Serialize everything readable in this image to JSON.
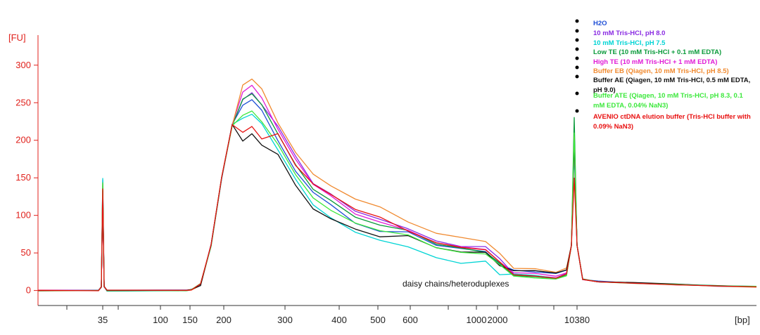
{
  "chart_data": {
    "type": "line",
    "ylabel": "[FU]",
    "xlabel": "[bp]",
    "y_ticks": [
      0,
      50,
      100,
      150,
      200,
      250,
      300
    ],
    "x_ticks": [
      "35",
      "100",
      "150",
      "200",
      "300",
      "400",
      "500",
      "600",
      "1000",
      "2000",
      "10380"
    ],
    "ylim": [
      -20,
      340
    ],
    "grid": false,
    "legend_position": "top-right",
    "annotation": "daisy chains/heteroduplexes",
    "series": [
      {
        "name": "H2O",
        "color": "#1f4fd6",
        "values": [
          [
            0,
            0
          ],
          [
            1,
            0
          ],
          [
            2,
            0
          ],
          [
            3,
            0
          ],
          [
            4,
            0
          ],
          [
            5,
            20
          ],
          [
            6,
            255
          ],
          [
            7,
            160
          ],
          [
            8,
            115
          ],
          [
            9,
            80
          ],
          [
            10,
            55
          ],
          [
            11,
            42
          ],
          [
            12,
            25
          ],
          [
            13,
            200
          ],
          [
            14,
            8
          ]
        ]
      },
      {
        "name": "10 mM Tris-HCl, pH 8.0",
        "color": "#8a2be2",
        "values": [
          [
            0,
            0
          ],
          [
            1,
            0
          ],
          [
            2,
            0
          ],
          [
            3,
            0
          ],
          [
            4,
            0
          ],
          [
            5,
            15
          ],
          [
            6,
            263
          ],
          [
            7,
            178
          ],
          [
            8,
            128
          ],
          [
            9,
            96
          ],
          [
            10,
            60
          ],
          [
            11,
            48
          ],
          [
            12,
            20
          ],
          [
            13,
            195
          ],
          [
            14,
            8
          ]
        ]
      },
      {
        "name": "10 mM Tris-HCl, pH 7.5",
        "color": "#00d4d4",
        "values": [
          [
            0,
            0
          ],
          [
            1,
            0
          ],
          [
            2,
            0
          ],
          [
            3,
            0
          ],
          [
            4,
            0
          ],
          [
            5,
            12
          ],
          [
            6,
            236
          ],
          [
            7,
            148
          ],
          [
            8,
            98
          ],
          [
            9,
            68
          ],
          [
            10,
            37
          ],
          [
            11,
            28
          ],
          [
            12,
            20
          ],
          [
            13,
            190
          ],
          [
            14,
            7
          ]
        ]
      },
      {
        "name": "Low TE (10 mM Tris-HCl + 0.1 mM EDTA)",
        "color": "#0a9a3a",
        "values": [
          [
            0,
            0
          ],
          [
            1,
            0
          ],
          [
            2,
            0
          ],
          [
            3,
            0
          ],
          [
            4,
            0
          ],
          [
            5,
            12
          ],
          [
            6,
            262
          ],
          [
            7,
            168
          ],
          [
            8,
            120
          ],
          [
            9,
            88
          ],
          [
            10,
            57
          ],
          [
            11,
            42
          ],
          [
            12,
            18
          ],
          [
            13,
            230
          ],
          [
            14,
            8
          ]
        ]
      },
      {
        "name": "High TE (10 mM Tris-HCl + 1 mM EDTA)",
        "color": "#e01bd6",
        "values": [
          [
            0,
            0
          ],
          [
            1,
            0
          ],
          [
            2,
            0
          ],
          [
            3,
            0
          ],
          [
            4,
            0
          ],
          [
            5,
            18
          ],
          [
            6,
            272
          ],
          [
            7,
            176
          ],
          [
            8,
            125
          ],
          [
            9,
            92
          ],
          [
            10,
            58
          ],
          [
            11,
            45
          ],
          [
            12,
            22
          ],
          [
            13,
            200
          ],
          [
            14,
            10
          ]
        ]
      },
      {
        "name": "Buffer EB (Qiagen, 10 mM Tris-HCl, pH 8.5)",
        "color": "#f08a30",
        "values": [
          [
            0,
            0
          ],
          [
            1,
            0
          ],
          [
            2,
            0
          ],
          [
            3,
            0
          ],
          [
            4,
            0
          ],
          [
            5,
            18
          ],
          [
            6,
            282
          ],
          [
            7,
            183
          ],
          [
            8,
            140
          ],
          [
            9,
            112
          ],
          [
            10,
            70
          ],
          [
            11,
            55
          ],
          [
            12,
            28
          ],
          [
            13,
            205
          ],
          [
            14,
            15
          ]
        ]
      },
      {
        "name": "Buffer AE (Qiagen, 10 mM Tris-HCl, 0.5 mM EDTA, pH 9.0)",
        "color": "#111111",
        "values": [
          [
            0,
            0
          ],
          [
            1,
            0
          ],
          [
            2,
            0
          ],
          [
            3,
            0
          ],
          [
            4,
            0
          ],
          [
            5,
            8
          ],
          [
            6,
            208
          ],
          [
            7,
            140
          ],
          [
            8,
            95
          ],
          [
            9,
            72
          ],
          [
            10,
            50
          ],
          [
            11,
            40
          ],
          [
            12,
            25
          ],
          [
            13,
            200
          ],
          [
            14,
            5
          ]
        ]
      },
      {
        "name": "Buffer ATE (Qiagen, 10 mM Tris-HCl, pH 8.3, 0.1 mM EDTA, 0.04% NaN3)",
        "color": "#3ce83c",
        "values": [
          [
            0,
            0
          ],
          [
            1,
            0
          ],
          [
            2,
            0
          ],
          [
            3,
            0
          ],
          [
            4,
            0
          ],
          [
            5,
            12
          ],
          [
            6,
            240
          ],
          [
            7,
            155
          ],
          [
            8,
            108
          ],
          [
            9,
            80
          ],
          [
            10,
            52
          ],
          [
            11,
            40
          ],
          [
            12,
            18
          ],
          [
            13,
            210
          ],
          [
            14,
            7
          ]
        ]
      },
      {
        "name": "AVENIO ctDNA elution buffer (Tris-HCl buffer with 0.09% NaN3)",
        "color": "#e81010",
        "values": [
          [
            0,
            0
          ],
          [
            1,
            0
          ],
          [
            2,
            0
          ],
          [
            3,
            0
          ],
          [
            4,
            0
          ],
          [
            5,
            8
          ],
          [
            6,
            218
          ],
          [
            7,
            168
          ],
          [
            8,
            128
          ],
          [
            9,
            98
          ],
          [
            10,
            58
          ],
          [
            11,
            45
          ],
          [
            12,
            20
          ],
          [
            13,
            150
          ],
          [
            14,
            8
          ]
        ]
      }
    ]
  }
}
